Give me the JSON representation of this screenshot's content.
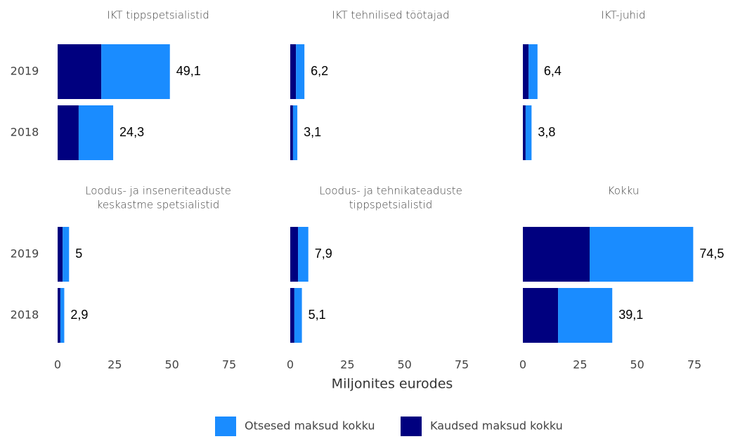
{
  "xlabel": "Miljonites eurodes",
  "legend": [
    {
      "name": "Otsesed maksud kokku",
      "color": "#1a8cff"
    },
    {
      "name": "Kaudsed maksud kokku",
      "color": "#00007f"
    }
  ],
  "chart_data": [
    {
      "type": "bar",
      "title": "IKT tippspetsialistid",
      "categories": [
        "2019",
        "2018"
      ],
      "series": [
        {
          "values": [
            30.0,
            15.1
          ]
        },
        {
          "values": [
            19.1,
            9.2
          ]
        }
      ],
      "totals": [
        49.1,
        24.3
      ],
      "total_labels": [
        "49,1",
        "24,3"
      ],
      "xlim": [
        0,
        75
      ]
    },
    {
      "type": "bar",
      "title": "IKT tehnilised töötajad",
      "series": [
        {
          "values": [
            3.7,
            1.9
          ]
        },
        {
          "values": [
            2.5,
            1.2
          ]
        }
      ],
      "totals": [
        6.2,
        3.1
      ],
      "total_labels": [
        "6,2",
        "3,1"
      ],
      "xlim": [
        0,
        75
      ]
    },
    {
      "type": "bar",
      "title": "IKT-juhid",
      "series": [
        {
          "values": [
            3.9,
            2.6
          ]
        },
        {
          "values": [
            2.5,
            1.2
          ]
        }
      ],
      "totals": [
        6.4,
        3.8
      ],
      "total_labels": [
        "6,4",
        "3,8"
      ],
      "xlim": [
        0,
        75
      ]
    },
    {
      "type": "bar",
      "title": [
        "Loodus- ja inseneriteaduste",
        "keskastme spetsialistid"
      ],
      "categories": [
        "2019",
        "2018"
      ],
      "series": [
        {
          "values": [
            2.8,
            1.7
          ]
        },
        {
          "values": [
            2.2,
            1.2
          ]
        }
      ],
      "totals": [
        5,
        2.9
      ],
      "total_labels": [
        "5",
        "2,9"
      ],
      "xlim": [
        0,
        75
      ],
      "xticks": [
        0,
        25,
        50,
        75
      ]
    },
    {
      "type": "bar",
      "title": [
        "Loodus- ja tehnikateaduste",
        "tippspetsialistid"
      ],
      "series": [
        {
          "values": [
            4.5,
            3.3
          ]
        },
        {
          "values": [
            3.4,
            1.8
          ]
        }
      ],
      "totals": [
        7.9,
        5.1
      ],
      "total_labels": [
        "7,9",
        "5,1"
      ],
      "xlim": [
        0,
        75
      ],
      "xticks": [
        0,
        25,
        50,
        75
      ]
    },
    {
      "type": "bar",
      "title": "Kokku",
      "series": [
        {
          "values": [
            45.3,
            23.7
          ]
        },
        {
          "values": [
            29.2,
            15.4
          ]
        }
      ],
      "totals": [
        74.5,
        39.1
      ],
      "total_labels": [
        "74,5",
        "39,1"
      ],
      "xlim": [
        0,
        75
      ],
      "xticks": [
        0,
        25,
        50,
        75
      ]
    }
  ]
}
